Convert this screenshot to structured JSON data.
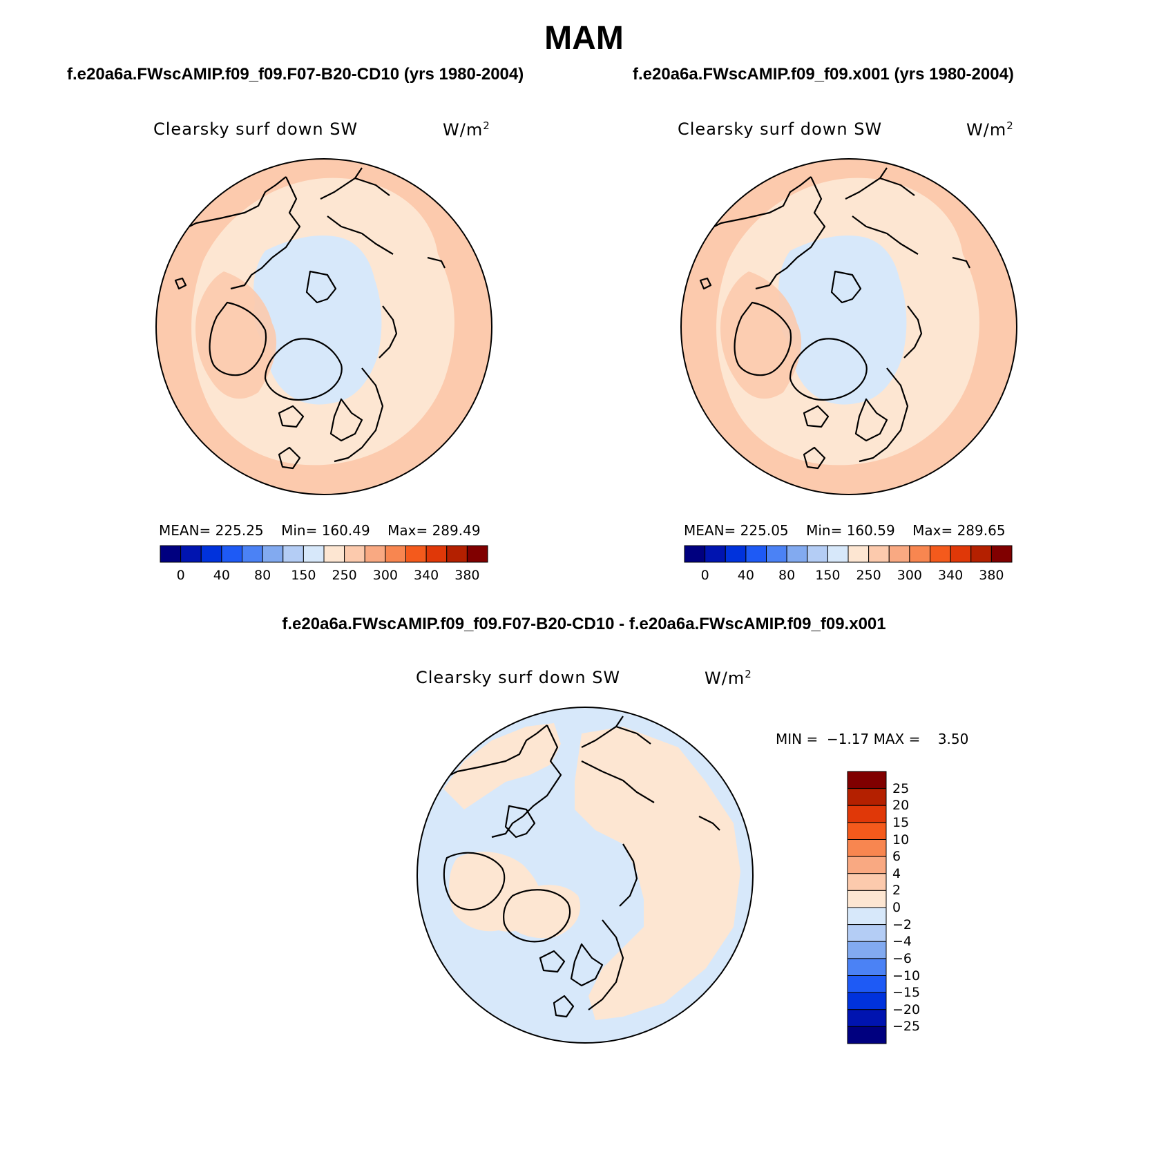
{
  "figure": {
    "title": "MAM",
    "diff_title": "f.e20a6a.FWscAMIP.f09_f09.F07-B20-CD10 - f.e20a6a.FWscAMIP.f09_f09.x001"
  },
  "panels": [
    {
      "id": "case1",
      "case_title": "f.e20a6a.FWscAMIP.f09_f09.F07-B20-CD10 (yrs 1980-2004)",
      "variable": "Clearsky surf down SW",
      "units_base": "W/m",
      "units_sup": "2",
      "mean_label": "MEAN=",
      "mean": "225.25",
      "min_label": "Min=",
      "min": "160.49",
      "max_label": "Max=",
      "max": "289.49"
    },
    {
      "id": "case2",
      "case_title": "f.e20a6a.FWscAMIP.f09_f09.x001 (yrs 1980-2004)",
      "variable": "Clearsky surf down SW",
      "units_base": "W/m",
      "units_sup": "2",
      "mean_label": "MEAN=",
      "mean": "225.05",
      "min_label": "Min=",
      "min": "160.59",
      "max_label": "Max=",
      "max": "289.65"
    }
  ],
  "diff_panel": {
    "variable": "Clearsky surf down SW",
    "units_base": "W/m",
    "units_sup": "2",
    "min_label": "MIN =",
    "min": "−1.17",
    "max_label": "MAX =",
    "max": "3.50"
  },
  "colorbar_abs": {
    "colors": [
      "#00007f",
      "#0014b0",
      "#0032dc",
      "#1e5af5",
      "#4b82f5",
      "#82aaf0",
      "#b4cdf5",
      "#d7e8fa",
      "#fde6d2",
      "#fccaad",
      "#f9a982",
      "#f88650",
      "#f45a1c",
      "#e03808",
      "#b42000",
      "#800000"
    ],
    "tick_labels": [
      "0",
      "40",
      "80",
      "150",
      "250",
      "300",
      "340",
      "380"
    ]
  },
  "colorbar_diff": {
    "colors_top_to_bottom": [
      "#800000",
      "#b42000",
      "#e03808",
      "#f45a1c",
      "#f88650",
      "#f9a982",
      "#fccaad",
      "#fde6d2",
      "#d7e8fa",
      "#b4cdf5",
      "#82aaf0",
      "#4b82f5",
      "#1e5af5",
      "#0032dc",
      "#0014b0",
      "#00007f"
    ],
    "tick_labels_top_to_bottom": [
      "25",
      "20",
      "15",
      "10",
      "6",
      "4",
      "2",
      "0",
      "−2",
      "−4",
      "−6",
      "−10",
      "−15",
      "−20",
      "−25"
    ]
  },
  "colors": {
    "outer_ring": "#fccaad",
    "mid_ring": "#fde6d2",
    "polar_cap": "#d7e8fa",
    "diff_positive": "#fde6d2",
    "diff_negative": "#d7e8fa"
  }
}
